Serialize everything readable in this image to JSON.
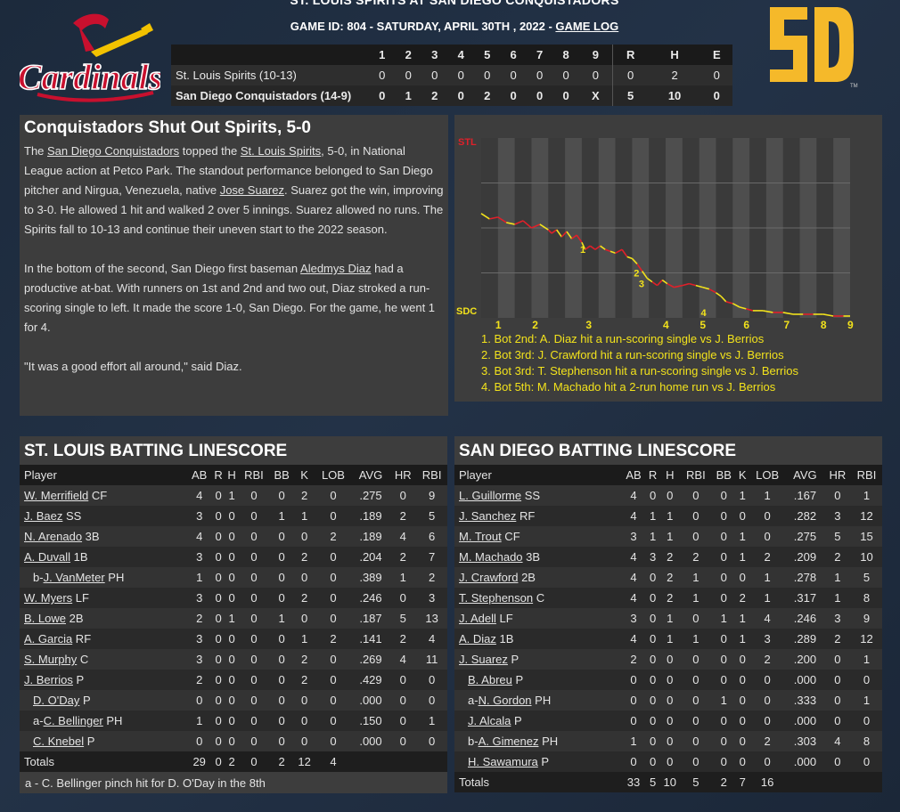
{
  "header": {
    "title": "ST. LOUIS SPIRITS AT SAN DIEGO CONQUISTADORS",
    "subtitle": "GAME ID: 804 - SATURDAY, APRIL 30TH , 2022 - ",
    "game_log_link": "GAME LOG"
  },
  "logos": {
    "left_text": "Cardinals",
    "right_tm": "TM"
  },
  "linescore": {
    "headers": [
      "",
      "1",
      "2",
      "3",
      "4",
      "5",
      "6",
      "7",
      "8",
      "9",
      "R",
      "H",
      "E"
    ],
    "rows": [
      {
        "team": "St. Louis Spirits (10-13)",
        "innings": [
          "0",
          "0",
          "0",
          "0",
          "0",
          "0",
          "0",
          "0",
          "0"
        ],
        "r": "0",
        "h": "2",
        "e": "0"
      },
      {
        "team": "San Diego Conquistadors (14-9)",
        "innings": [
          "0",
          "1",
          "2",
          "0",
          "2",
          "0",
          "0",
          "0",
          "X"
        ],
        "r": "5",
        "h": "10",
        "e": "0"
      }
    ]
  },
  "recap": {
    "title": "Conquistadors Shut Out Spirits, 5-0",
    "p1": {
      "a": "The ",
      "link1": "San Diego Conquistadors",
      "b": " topped the ",
      "link2": "St. Louis Spirits",
      "c": ", 5-0, in National League action at Petco Park. The standout performance belonged to San Diego pitcher and Nirgua, Venezuela, native ",
      "link3": "Jose Suarez",
      "d": ". Suarez got the win, improving to 3-0. He allowed 1 hit and walked 2 over 5 innings. Suarez allowed no runs. The Spirits fall to 10-13 and continue their uneven start to the 2022 season."
    },
    "p2": {
      "a": "In the bottom of the second, San Diego first baseman ",
      "link1": "Aledmys Diaz",
      "b": " had a productive at-bat. With runners on 1st and 2nd and two out, Diaz stroked a run-scoring single to left. It made the score 1-0, San Diego. For the game, he went 1 for 4."
    },
    "p3": "\"It was a good effort all around,\" said Diaz."
  },
  "colors": {
    "stl_red": "#e0202a",
    "sd_yellow": "#f2e21c",
    "sd_logo": "#f5b92a"
  },
  "chart_data": {
    "type": "line",
    "top_label": "STL",
    "bottom_label": "SDC",
    "x_ticks": [
      "1",
      "2",
      "3",
      "4",
      "5",
      "6",
      "7",
      "8",
      "9"
    ],
    "ylim": [
      0,
      1
    ],
    "points": [
      [
        0.0,
        0.58
      ],
      [
        0.25,
        0.55
      ],
      [
        0.5,
        0.56
      ],
      [
        0.75,
        0.53
      ],
      [
        1.0,
        0.52
      ],
      [
        1.25,
        0.54
      ],
      [
        1.5,
        0.5
      ],
      [
        1.75,
        0.52
      ],
      [
        2.0,
        0.49
      ],
      [
        2.1,
        0.47
      ],
      [
        2.25,
        0.49
      ],
      [
        2.4,
        0.45
      ],
      [
        2.55,
        0.48
      ],
      [
        2.7,
        0.44
      ],
      [
        2.85,
        0.46
      ],
      [
        3.0,
        0.42
      ],
      [
        3.1,
        0.38
      ],
      [
        3.25,
        0.4
      ],
      [
        3.4,
        0.38
      ],
      [
        3.55,
        0.4
      ],
      [
        3.7,
        0.38
      ],
      [
        3.85,
        0.37
      ],
      [
        4.0,
        0.36
      ],
      [
        4.2,
        0.38
      ],
      [
        4.35,
        0.34
      ],
      [
        4.5,
        0.33
      ],
      [
        4.65,
        0.3
      ],
      [
        4.8,
        0.26
      ],
      [
        4.95,
        0.22
      ],
      [
        5.1,
        0.2
      ],
      [
        5.25,
        0.18
      ],
      [
        5.4,
        0.21
      ],
      [
        5.55,
        0.19
      ],
      [
        5.75,
        0.17
      ],
      [
        6.0,
        0.18
      ],
      [
        6.2,
        0.19
      ],
      [
        6.4,
        0.18
      ],
      [
        6.6,
        0.17
      ],
      [
        6.8,
        0.16
      ],
      [
        7.0,
        0.14
      ],
      [
        7.15,
        0.12
      ],
      [
        7.3,
        0.09
      ],
      [
        7.5,
        0.08
      ],
      [
        7.7,
        0.06
      ],
      [
        7.9,
        0.05
      ],
      [
        8.1,
        0.04
      ],
      [
        8.4,
        0.04
      ],
      [
        8.7,
        0.03
      ],
      [
        9.0,
        0.03
      ],
      [
        9.3,
        0.02
      ],
      [
        9.6,
        0.02
      ],
      [
        9.9,
        0.02
      ],
      [
        10.2,
        0.02
      ],
      [
        10.5,
        0.01
      ],
      [
        10.8,
        0.01
      ],
      [
        11.0,
        0.01
      ]
    ],
    "annotations": [
      {
        "label": "1",
        "x": 2.95,
        "y": 0.38
      },
      {
        "label": "2",
        "x": 4.55,
        "y": 0.25
      },
      {
        "label": "3",
        "x": 4.7,
        "y": 0.19
      },
      {
        "label": "4",
        "x": 6.55,
        "y": 0.03
      }
    ],
    "notes": [
      "1. Bot 2nd: A. Diaz hit a run-scoring single vs J. Berrios",
      "2. Bot 3rd: J. Crawford hit a run-scoring single vs J. Berrios",
      "3. Bot 3rd: T. Stephenson hit a run-scoring single vs J. Berrios",
      "4. Bot 5th: M. Machado hit a 2-run home run vs J. Berrios"
    ]
  },
  "stl_batting": {
    "title": "ST. LOUIS BATTING LINESCORE",
    "headers": [
      "Player",
      "AB",
      "R",
      "H",
      "RBI",
      "BB",
      "K",
      "LOB",
      "AVG",
      "HR",
      "RBI"
    ],
    "rows": [
      {
        "prefix": "",
        "name": "W. Merrifield",
        "pos": "CF",
        "sub": false,
        "stats": [
          "4",
          "0",
          "1",
          "0",
          "0",
          "2",
          "0",
          ".275",
          "0",
          "9"
        ]
      },
      {
        "prefix": "",
        "name": "J. Baez",
        "pos": "SS",
        "sub": false,
        "stats": [
          "3",
          "0",
          "0",
          "0",
          "1",
          "1",
          "0",
          ".189",
          "2",
          "5"
        ]
      },
      {
        "prefix": "",
        "name": "N. Arenado",
        "pos": "3B",
        "sub": false,
        "stats": [
          "4",
          "0",
          "0",
          "0",
          "0",
          "0",
          "2",
          ".189",
          "4",
          "6"
        ]
      },
      {
        "prefix": "",
        "name": "A. Duvall",
        "pos": "1B",
        "sub": false,
        "stats": [
          "3",
          "0",
          "0",
          "0",
          "0",
          "2",
          "0",
          ".204",
          "2",
          "7"
        ]
      },
      {
        "prefix": "b-",
        "name": "J. VanMeter",
        "pos": "PH",
        "sub": true,
        "stats": [
          "1",
          "0",
          "0",
          "0",
          "0",
          "0",
          "0",
          ".389",
          "1",
          "2"
        ]
      },
      {
        "prefix": "",
        "name": "W. Myers",
        "pos": "LF",
        "sub": false,
        "stats": [
          "3",
          "0",
          "0",
          "0",
          "0",
          "2",
          "0",
          ".246",
          "0",
          "3"
        ]
      },
      {
        "prefix": "",
        "name": "B. Lowe",
        "pos": "2B",
        "sub": false,
        "stats": [
          "2",
          "0",
          "1",
          "0",
          "1",
          "0",
          "0",
          ".187",
          "5",
          "13"
        ]
      },
      {
        "prefix": "",
        "name": "A. Garcia",
        "pos": "RF",
        "sub": false,
        "stats": [
          "3",
          "0",
          "0",
          "0",
          "0",
          "1",
          "2",
          ".141",
          "2",
          "4"
        ]
      },
      {
        "prefix": "",
        "name": "S. Murphy",
        "pos": "C",
        "sub": false,
        "stats": [
          "3",
          "0",
          "0",
          "0",
          "0",
          "2",
          "0",
          ".269",
          "4",
          "11"
        ]
      },
      {
        "prefix": "",
        "name": "J. Berrios",
        "pos": "P",
        "sub": false,
        "stats": [
          "2",
          "0",
          "0",
          "0",
          "0",
          "2",
          "0",
          ".429",
          "0",
          "0"
        ]
      },
      {
        "prefix": "",
        "name": "D. O'Day",
        "pos": "P",
        "sub": true,
        "stats": [
          "0",
          "0",
          "0",
          "0",
          "0",
          "0",
          "0",
          ".000",
          "0",
          "0"
        ]
      },
      {
        "prefix": "a-",
        "name": "C. Bellinger",
        "pos": "PH",
        "sub": true,
        "stats": [
          "1",
          "0",
          "0",
          "0",
          "0",
          "0",
          "0",
          ".150",
          "0",
          "1"
        ]
      },
      {
        "prefix": "",
        "name": "C. Knebel",
        "pos": "P",
        "sub": true,
        "stats": [
          "0",
          "0",
          "0",
          "0",
          "0",
          "0",
          "0",
          ".000",
          "0",
          "0"
        ]
      }
    ],
    "totals": {
      "label": "Totals",
      "stats": [
        "29",
        "0",
        "2",
        "0",
        "2",
        "12",
        "4",
        "",
        "",
        ""
      ]
    },
    "note": "a - C. Bellinger pinch hit for D. O'Day in the 8th"
  },
  "sd_batting": {
    "title": "SAN DIEGO BATTING LINESCORE",
    "headers": [
      "Player",
      "AB",
      "R",
      "H",
      "RBI",
      "BB",
      "K",
      "LOB",
      "AVG",
      "HR",
      "RBI"
    ],
    "rows": [
      {
        "prefix": "",
        "name": "L. Guillorme",
        "pos": "SS",
        "sub": false,
        "stats": [
          "4",
          "0",
          "0",
          "0",
          "0",
          "1",
          "1",
          ".167",
          "0",
          "1"
        ]
      },
      {
        "prefix": "",
        "name": "J. Sanchez",
        "pos": "RF",
        "sub": false,
        "stats": [
          "4",
          "1",
          "1",
          "0",
          "0",
          "0",
          "0",
          ".282",
          "3",
          "12"
        ]
      },
      {
        "prefix": "",
        "name": "M. Trout",
        "pos": "CF",
        "sub": false,
        "stats": [
          "3",
          "1",
          "1",
          "0",
          "0",
          "1",
          "0",
          ".275",
          "5",
          "15"
        ]
      },
      {
        "prefix": "",
        "name": "M. Machado",
        "pos": "3B",
        "sub": false,
        "stats": [
          "4",
          "3",
          "2",
          "2",
          "0",
          "1",
          "2",
          ".209",
          "2",
          "10"
        ]
      },
      {
        "prefix": "",
        "name": "J. Crawford",
        "pos": "2B",
        "sub": false,
        "stats": [
          "4",
          "0",
          "2",
          "1",
          "0",
          "0",
          "1",
          ".278",
          "1",
          "5"
        ]
      },
      {
        "prefix": "",
        "name": "T. Stephenson",
        "pos": "C",
        "sub": false,
        "stats": [
          "4",
          "0",
          "2",
          "1",
          "0",
          "2",
          "1",
          ".317",
          "1",
          "8"
        ]
      },
      {
        "prefix": "",
        "name": "J. Adell",
        "pos": "LF",
        "sub": false,
        "stats": [
          "3",
          "0",
          "1",
          "0",
          "1",
          "1",
          "4",
          ".246",
          "3",
          "9"
        ]
      },
      {
        "prefix": "",
        "name": "A. Diaz",
        "pos": "1B",
        "sub": false,
        "stats": [
          "4",
          "0",
          "1",
          "1",
          "0",
          "1",
          "3",
          ".289",
          "2",
          "12"
        ]
      },
      {
        "prefix": "",
        "name": "J. Suarez",
        "pos": "P",
        "sub": false,
        "stats": [
          "2",
          "0",
          "0",
          "0",
          "0",
          "0",
          "2",
          ".200",
          "0",
          "1"
        ]
      },
      {
        "prefix": "",
        "name": "B. Abreu",
        "pos": "P",
        "sub": true,
        "stats": [
          "0",
          "0",
          "0",
          "0",
          "0",
          "0",
          "0",
          ".000",
          "0",
          "0"
        ]
      },
      {
        "prefix": "a-",
        "name": "N. Gordon",
        "pos": "PH",
        "sub": true,
        "stats": [
          "0",
          "0",
          "0",
          "0",
          "1",
          "0",
          "0",
          ".333",
          "0",
          "1"
        ]
      },
      {
        "prefix": "",
        "name": "J. Alcala",
        "pos": "P",
        "sub": true,
        "stats": [
          "0",
          "0",
          "0",
          "0",
          "0",
          "0",
          "0",
          ".000",
          "0",
          "0"
        ]
      },
      {
        "prefix": "b-",
        "name": "A. Gimenez",
        "pos": "PH",
        "sub": true,
        "stats": [
          "1",
          "0",
          "0",
          "0",
          "0",
          "0",
          "2",
          ".303",
          "4",
          "8"
        ]
      },
      {
        "prefix": "",
        "name": "H. Sawamura",
        "pos": "P",
        "sub": true,
        "stats": [
          "0",
          "0",
          "0",
          "0",
          "0",
          "0",
          "0",
          ".000",
          "0",
          "0"
        ]
      }
    ],
    "totals": {
      "label": "Totals",
      "stats": [
        "33",
        "5",
        "10",
        "5",
        "2",
        "7",
        "16",
        "",
        "",
        ""
      ]
    }
  }
}
